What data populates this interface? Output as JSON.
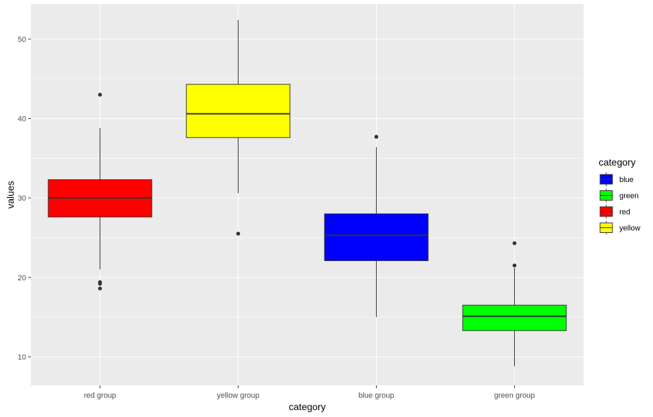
{
  "chart_data": {
    "type": "boxplot",
    "xlabel": "category",
    "ylabel": "values",
    "ylim": [
      6.4,
      54.4
    ],
    "yticks": [
      10,
      20,
      30,
      40,
      50
    ],
    "categories": [
      "red group",
      "yellow group",
      "blue group",
      "green group"
    ],
    "boxes": [
      {
        "category": "red group",
        "fill": "red",
        "q1": 27.6,
        "median": 30.0,
        "q3": 32.3,
        "whisker_low": 21.0,
        "whisker_high": 38.8,
        "outliers": [
          43.0,
          19.4,
          19.2,
          18.6
        ]
      },
      {
        "category": "yellow group",
        "fill": "yellow",
        "q1": 37.6,
        "median": 40.6,
        "q3": 44.3,
        "whisker_low": 30.6,
        "whisker_high": 52.4,
        "outliers": [
          25.5
        ]
      },
      {
        "category": "blue group",
        "fill": "blue",
        "q1": 22.1,
        "median": 25.3,
        "q3": 28.0,
        "whisker_low": 15.0,
        "whisker_high": 36.4,
        "outliers": [
          37.7
        ]
      },
      {
        "category": "green group",
        "fill": "green",
        "q1": 13.3,
        "median": 15.1,
        "q3": 16.5,
        "whisker_low": 8.8,
        "whisker_high": 21.2,
        "outliers": [
          24.3,
          21.5
        ]
      }
    ],
    "grid": true,
    "legend": {
      "title": "category",
      "position": "right",
      "items": [
        {
          "label": "blue",
          "color": "#0000FF"
        },
        {
          "label": "green",
          "color": "#00FF00"
        },
        {
          "label": "red",
          "color": "#FF0000"
        },
        {
          "label": "yellow",
          "color": "#FFFF00"
        }
      ]
    },
    "colors": {
      "red": "#FF0000",
      "yellow": "#FFFF00",
      "blue": "#0000FF",
      "green": "#00FF00",
      "panel": "#EBEBEB",
      "grid": "#FFFFFF",
      "line": "#333333"
    }
  }
}
